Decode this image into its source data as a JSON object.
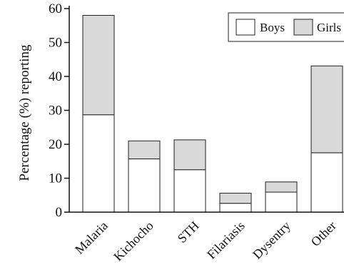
{
  "chart_data": {
    "type": "bar",
    "stacked": true,
    "title": "",
    "xlabel": "",
    "ylabel": "Percentage (%) reporting",
    "ylim": [
      0,
      60
    ],
    "yticks": [
      "0",
      "10",
      "20",
      "30",
      "40",
      "50",
      "60"
    ],
    "categories": [
      "Malaria",
      "Kichocho",
      "STH",
      "Filariasis",
      "Dysentry",
      "Other"
    ],
    "series": [
      {
        "name": "Boys",
        "color": "#ffffff",
        "values": [
          28.7,
          15.7,
          12.5,
          2.6,
          5.9,
          17.5
        ]
      },
      {
        "name": "Girls",
        "color": "#d9d9d9",
        "values": [
          29.3,
          5.3,
          8.8,
          3.0,
          3.0,
          25.6
        ]
      }
    ],
    "grid": false,
    "legend": "top-right"
  }
}
